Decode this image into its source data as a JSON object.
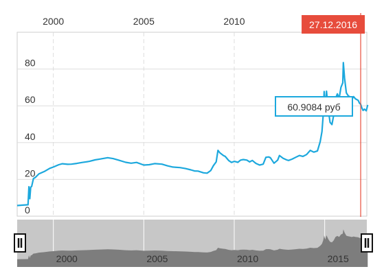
{
  "chart_data": {
    "type": "line",
    "title": "",
    "xlabel": "",
    "ylabel": "",
    "unit": "руб",
    "x_ticks": [
      "2000",
      "2005",
      "2010"
    ],
    "y_ticks": [
      "0",
      "20",
      "40",
      "60",
      "80"
    ],
    "ylim": [
      0,
      100
    ],
    "xlim": [
      "1998-01",
      "2017-03"
    ],
    "grid": true,
    "crosshair": {
      "date_label": "27.12.2016",
      "value_label": "60.9084 руб"
    },
    "navigator": {
      "ticks": [
        "2000",
        "2005",
        "2010",
        "2015"
      ]
    },
    "series": [
      {
        "color": "#1ca8dd",
        "points": [
          [
            1998.0,
            5.8
          ],
          [
            1998.3,
            6.0
          ],
          [
            1998.6,
            6.2
          ],
          [
            1998.65,
            16.0
          ],
          [
            1998.7,
            9.5
          ],
          [
            1998.75,
            15.8
          ],
          [
            1998.8,
            16.2
          ],
          [
            1998.9,
            20.5
          ],
          [
            1999.0,
            21.0
          ],
          [
            1999.2,
            23.0
          ],
          [
            1999.5,
            24.3
          ],
          [
            1999.8,
            26.0
          ],
          [
            2000.0,
            26.7
          ],
          [
            2000.3,
            28.0
          ],
          [
            2000.5,
            28.5
          ],
          [
            2000.8,
            28.2
          ],
          [
            2001.0,
            28.3
          ],
          [
            2001.3,
            28.7
          ],
          [
            2001.6,
            29.2
          ],
          [
            2002.0,
            29.8
          ],
          [
            2002.3,
            30.6
          ],
          [
            2002.6,
            31.1
          ],
          [
            2003.0,
            31.8
          ],
          [
            2003.3,
            31.3
          ],
          [
            2003.6,
            30.5
          ],
          [
            2004.0,
            29.3
          ],
          [
            2004.3,
            28.8
          ],
          [
            2004.6,
            29.2
          ],
          [
            2005.0,
            27.8
          ],
          [
            2005.3,
            28.0
          ],
          [
            2005.6,
            28.6
          ],
          [
            2006.0,
            28.3
          ],
          [
            2006.3,
            27.4
          ],
          [
            2006.6,
            26.7
          ],
          [
            2007.0,
            26.4
          ],
          [
            2007.3,
            25.9
          ],
          [
            2007.6,
            25.2
          ],
          [
            2007.8,
            24.6
          ],
          [
            2008.0,
            24.5
          ],
          [
            2008.3,
            23.6
          ],
          [
            2008.5,
            23.4
          ],
          [
            2008.7,
            24.8
          ],
          [
            2008.85,
            27.5
          ],
          [
            2009.0,
            29.5
          ],
          [
            2009.1,
            35.8
          ],
          [
            2009.2,
            34.5
          ],
          [
            2009.4,
            33.0
          ],
          [
            2009.5,
            32.5
          ],
          [
            2009.7,
            30.2
          ],
          [
            2009.85,
            29.2
          ],
          [
            2010.0,
            29.8
          ],
          [
            2010.2,
            29.3
          ],
          [
            2010.35,
            30.5
          ],
          [
            2010.5,
            30.8
          ],
          [
            2010.7,
            30.5
          ],
          [
            2010.85,
            29.5
          ],
          [
            2011.0,
            30.3
          ],
          [
            2011.2,
            28.7
          ],
          [
            2011.4,
            27.8
          ],
          [
            2011.6,
            28.3
          ],
          [
            2011.75,
            32.0
          ],
          [
            2011.9,
            32.2
          ],
          [
            2012.0,
            31.8
          ],
          [
            2012.2,
            28.8
          ],
          [
            2012.4,
            30.5
          ],
          [
            2012.5,
            33.0
          ],
          [
            2012.7,
            31.5
          ],
          [
            2012.9,
            30.6
          ],
          [
            2013.0,
            30.3
          ],
          [
            2013.2,
            31.0
          ],
          [
            2013.4,
            32.0
          ],
          [
            2013.6,
            33.0
          ],
          [
            2013.8,
            32.5
          ],
          [
            2014.0,
            33.5
          ],
          [
            2014.2,
            35.8
          ],
          [
            2014.4,
            34.8
          ],
          [
            2014.6,
            35.5
          ],
          [
            2014.75,
            40.5
          ],
          [
            2014.85,
            46.0
          ],
          [
            2014.92,
            55.0
          ],
          [
            2014.97,
            67.8
          ],
          [
            2015.03,
            57.0
          ],
          [
            2015.1,
            68.0
          ],
          [
            2015.2,
            58.0
          ],
          [
            2015.3,
            51.0
          ],
          [
            2015.4,
            49.8
          ],
          [
            2015.5,
            55.0
          ],
          [
            2015.6,
            64.0
          ],
          [
            2015.7,
            66.5
          ],
          [
            2015.8,
            64.0
          ],
          [
            2015.9,
            70.0
          ],
          [
            2016.0,
            72.5
          ],
          [
            2016.03,
            83.5
          ],
          [
            2016.1,
            75.0
          ],
          [
            2016.2,
            67.0
          ],
          [
            2016.3,
            65.5
          ],
          [
            2016.4,
            64.8
          ],
          [
            2016.5,
            63.5
          ],
          [
            2016.6,
            65.0
          ],
          [
            2016.7,
            63.8
          ],
          [
            2016.85,
            63.0
          ],
          [
            2016.92,
            61.5
          ],
          [
            2016.99,
            60.9
          ],
          [
            2017.05,
            59.0
          ],
          [
            2017.12,
            57.5
          ],
          [
            2017.2,
            58.2
          ],
          [
            2017.3,
            57.3
          ],
          [
            2017.38,
            60.5
          ]
        ]
      }
    ]
  }
}
